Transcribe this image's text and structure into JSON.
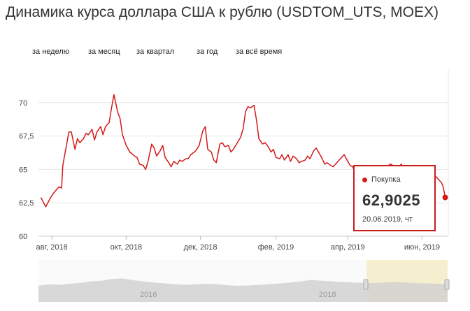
{
  "title": "Динамика курса доллара США к рублю (USDTOM_UTS, MOEX)",
  "periods": [
    {
      "label": "за неделю"
    },
    {
      "label": "за месяц"
    },
    {
      "label": "за квартал"
    },
    {
      "label": "за год"
    },
    {
      "label": "за всё время"
    }
  ],
  "tooltip": {
    "label": "Покупка",
    "value": "62,9025",
    "date": "20.06.2019, чт"
  },
  "colors": {
    "line": "#d31a1a",
    "grid": "#e6e6e6",
    "navigator_highlight": "#f6efcf",
    "navigator_area": "#cfcfcf"
  },
  "chart_data": {
    "type": "line",
    "series": [
      {
        "values": [
          [
            "2018-07-23",
            62.9
          ],
          [
            "2018-07-27",
            62.2
          ],
          [
            "2018-07-31",
            62.9
          ],
          [
            "2018-08-03",
            63.3
          ],
          [
            "2018-08-07",
            63.7
          ],
          [
            "2018-08-09",
            63.6
          ],
          [
            "2018-08-10",
            65.3
          ],
          [
            "2018-08-13",
            66.8
          ],
          [
            "2018-08-15",
            67.8
          ],
          [
            "2018-08-17",
            67.8
          ],
          [
            "2018-08-20",
            66.5
          ],
          [
            "2018-08-22",
            67.3
          ],
          [
            "2018-08-24",
            67.0
          ],
          [
            "2018-08-27",
            67.3
          ],
          [
            "2018-08-29",
            67.7
          ],
          [
            "2018-08-31",
            67.6
          ],
          [
            "2018-09-03",
            68.0
          ],
          [
            "2018-09-05",
            67.2
          ],
          [
            "2018-09-07",
            67.8
          ],
          [
            "2018-09-10",
            68.2
          ],
          [
            "2018-09-12",
            67.6
          ],
          [
            "2018-09-14",
            68.2
          ],
          [
            "2018-09-17",
            68.5
          ],
          [
            "2018-09-19",
            69.6
          ],
          [
            "2018-09-21",
            70.6
          ],
          [
            "2018-09-24",
            69.3
          ],
          [
            "2018-09-26",
            68.8
          ],
          [
            "2018-09-28",
            67.6
          ],
          [
            "2018-10-01",
            66.8
          ],
          [
            "2018-10-04",
            66.3
          ],
          [
            "2018-10-08",
            66.0
          ],
          [
            "2018-10-10",
            65.9
          ],
          [
            "2018-10-12",
            65.4
          ],
          [
            "2018-10-15",
            65.3
          ],
          [
            "2018-10-17",
            65.0
          ],
          [
            "2018-10-19",
            65.6
          ],
          [
            "2018-10-22",
            66.9
          ],
          [
            "2018-10-24",
            66.6
          ],
          [
            "2018-10-26",
            66.0
          ],
          [
            "2018-10-29",
            66.4
          ],
          [
            "2018-10-31",
            66.8
          ],
          [
            "2018-11-02",
            65.9
          ],
          [
            "2018-11-05",
            65.5
          ],
          [
            "2018-11-07",
            65.2
          ],
          [
            "2018-11-09",
            65.6
          ],
          [
            "2018-11-12",
            65.4
          ],
          [
            "2018-11-14",
            65.7
          ],
          [
            "2018-11-16",
            65.6
          ],
          [
            "2018-11-19",
            65.8
          ],
          [
            "2018-11-21",
            65.8
          ],
          [
            "2018-11-23",
            66.1
          ],
          [
            "2018-11-26",
            66.3
          ],
          [
            "2018-11-28",
            66.5
          ],
          [
            "2018-11-30",
            66.8
          ],
          [
            "2018-12-03",
            67.9
          ],
          [
            "2018-12-05",
            68.2
          ],
          [
            "2018-12-07",
            66.5
          ],
          [
            "2018-12-10",
            66.3
          ],
          [
            "2018-12-12",
            65.7
          ],
          [
            "2018-12-14",
            65.5
          ],
          [
            "2018-12-17",
            66.9
          ],
          [
            "2018-12-19",
            67.0
          ],
          [
            "2018-12-21",
            66.7
          ],
          [
            "2018-12-24",
            66.8
          ],
          [
            "2018-12-26",
            66.3
          ],
          [
            "2018-12-28",
            66.5
          ],
          [
            "2019-01-03",
            67.4
          ],
          [
            "2019-01-05",
            68.0
          ],
          [
            "2019-01-07",
            69.3
          ],
          [
            "2019-01-09",
            69.7
          ],
          [
            "2019-01-11",
            69.6
          ],
          [
            "2019-01-14",
            69.8
          ],
          [
            "2019-01-16",
            68.7
          ],
          [
            "2019-01-18",
            67.3
          ],
          [
            "2019-01-21",
            66.9
          ],
          [
            "2019-01-23",
            67.0
          ],
          [
            "2019-01-25",
            66.8
          ],
          [
            "2019-01-28",
            66.3
          ],
          [
            "2019-01-30",
            66.5
          ],
          [
            "2019-02-01",
            65.9
          ],
          [
            "2019-02-04",
            65.8
          ],
          [
            "2019-02-06",
            66.1
          ],
          [
            "2019-02-08",
            65.7
          ],
          [
            "2019-02-11",
            66.1
          ],
          [
            "2019-02-13",
            65.6
          ],
          [
            "2019-02-15",
            66.0
          ],
          [
            "2019-02-18",
            65.8
          ],
          [
            "2019-02-20",
            65.5
          ],
          [
            "2019-02-22",
            65.6
          ],
          [
            "2019-02-25",
            65.7
          ],
          [
            "2019-02-27",
            66.0
          ],
          [
            "2019-03-01",
            65.8
          ],
          [
            "2019-03-04",
            66.4
          ],
          [
            "2019-03-06",
            66.6
          ],
          [
            "2019-03-08",
            66.3
          ],
          [
            "2019-03-11",
            65.8
          ],
          [
            "2019-03-13",
            65.4
          ],
          [
            "2019-03-15",
            65.5
          ],
          [
            "2019-03-18",
            65.3
          ],
          [
            "2019-03-20",
            65.2
          ],
          [
            "2019-03-22",
            65.4
          ],
          [
            "2019-03-25",
            65.7
          ],
          [
            "2019-03-27",
            65.9
          ],
          [
            "2019-03-29",
            66.1
          ],
          [
            "2019-04-01",
            65.6
          ],
          [
            "2019-04-03",
            65.3
          ],
          [
            "2019-04-05",
            65.2
          ],
          [
            "2019-04-08",
            64.6
          ],
          [
            "2019-04-10",
            64.4
          ],
          [
            "2019-04-12",
            63.9
          ],
          [
            "2019-04-15",
            64.1
          ],
          [
            "2019-04-17",
            63.9
          ],
          [
            "2019-04-19",
            64.5
          ],
          [
            "2019-04-22",
            64.2
          ],
          [
            "2019-04-24",
            64.6
          ],
          [
            "2019-04-26",
            64.8
          ],
          [
            "2019-04-29",
            65.0
          ],
          [
            "2019-05-01",
            65.3
          ],
          [
            "2019-05-03",
            65.2
          ],
          [
            "2019-05-06",
            65.4
          ],
          [
            "2019-05-08",
            65.3
          ],
          [
            "2019-05-13",
            65.2
          ],
          [
            "2019-05-15",
            65.4
          ],
          [
            "2019-05-17",
            65.0
          ],
          [
            "2019-05-20",
            65.3
          ],
          [
            "2019-05-22",
            65.1
          ],
          [
            "2019-05-24",
            65.0
          ],
          [
            "2019-05-27",
            64.8
          ],
          [
            "2019-05-29",
            64.9
          ],
          [
            "2019-05-31",
            65.0
          ],
          [
            "2019-06-03",
            64.9
          ],
          [
            "2019-06-05",
            65.1
          ],
          [
            "2019-06-07",
            64.8
          ],
          [
            "2019-06-10",
            64.6
          ],
          [
            "2019-06-12",
            64.5
          ],
          [
            "2019-06-14",
            64.3
          ],
          [
            "2019-06-17",
            64.0
          ],
          [
            "2019-06-18",
            63.8
          ],
          [
            "2019-06-19",
            63.4
          ],
          [
            "2019-06-20",
            62.9025
          ]
        ]
      }
    ],
    "y_ticks": [
      "60",
      "62,5",
      "65",
      "67,5",
      "70"
    ],
    "ylim": [
      60,
      72.5
    ],
    "x_ticks": [
      {
        "label": "авг, 2018",
        "date": "2018-08-01"
      },
      {
        "label": "окт, 2018",
        "date": "2018-10-01"
      },
      {
        "label": "дек, 2018",
        "date": "2018-12-01"
      },
      {
        "label": "фев, 2019",
        "date": "2019-02-01"
      },
      {
        "label": "апр, 2019",
        "date": "2019-04-01"
      },
      {
        "label": "июн, 2019",
        "date": "2019-06-01"
      }
    ],
    "xlim": [
      "2018-07-21",
      "2019-06-22"
    ],
    "grid": "horizontal",
    "navigator": {
      "year_labels": [
        "2016",
        "2018"
      ]
    }
  }
}
